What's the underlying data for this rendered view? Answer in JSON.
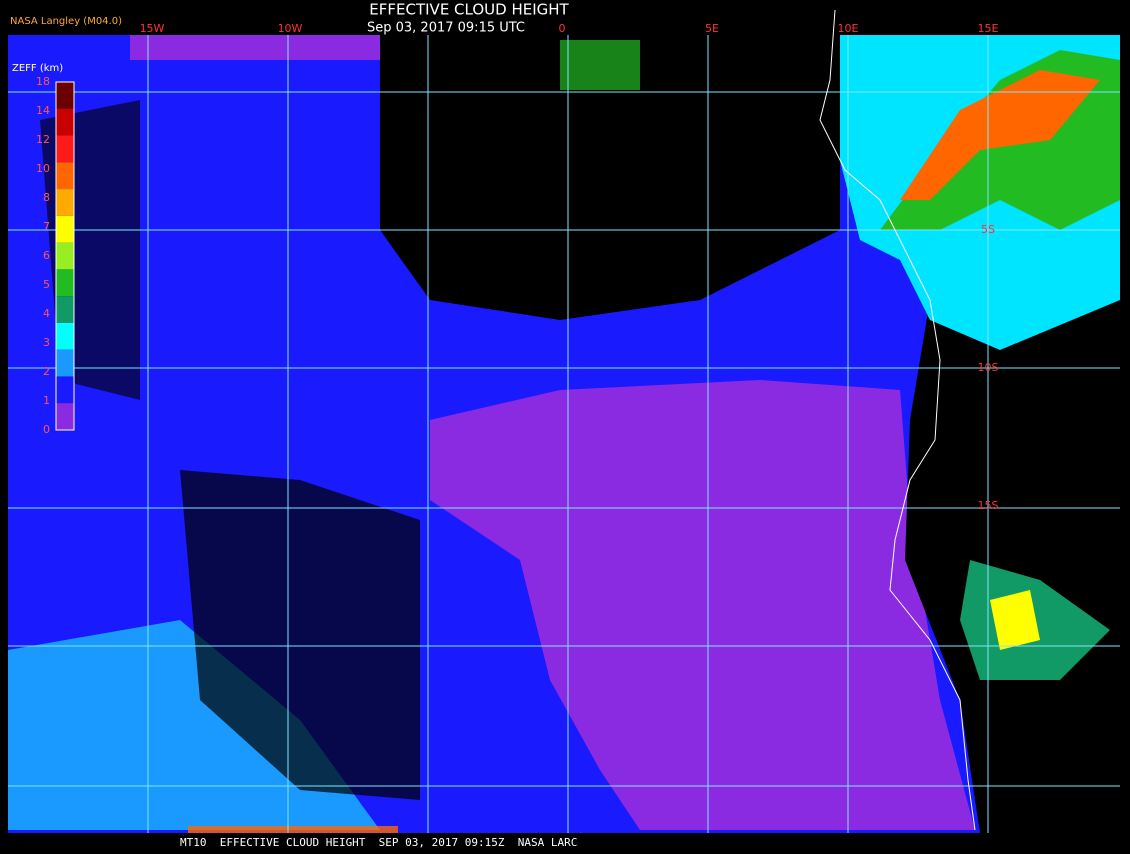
{
  "header": {
    "title": "EFFECTIVE CLOUD HEIGHT",
    "subtitle": "Sep 03, 2017 09:15 UTC",
    "source": "NASA Langley (M04.0)"
  },
  "legend": {
    "title": "ZEFF (km)",
    "labels": [
      "18",
      "14",
      "12",
      "10",
      "8",
      "7",
      "6",
      "5",
      "4",
      "3",
      "2",
      "1",
      "0"
    ],
    "colors": [
      "#6b0000",
      "#c80000",
      "#ff1a1a",
      "#ff6600",
      "#ffaa00",
      "#ffff00",
      "#99ee22",
      "#22bb22",
      "#119966",
      "#00ffff",
      "#1a99ff",
      "#1a1aff",
      "#8a2be2"
    ]
  },
  "grid": {
    "lon_labels": [
      "15W",
      "10W",
      "0",
      "5E",
      "10E",
      "15E"
    ],
    "lat_labels": [
      "5S",
      "10S",
      "15S"
    ]
  },
  "footer": "MT10  EFFECTIVE CLOUD HEIGHT  SEP 03, 2017 09:15Z  NASA LARC"
}
